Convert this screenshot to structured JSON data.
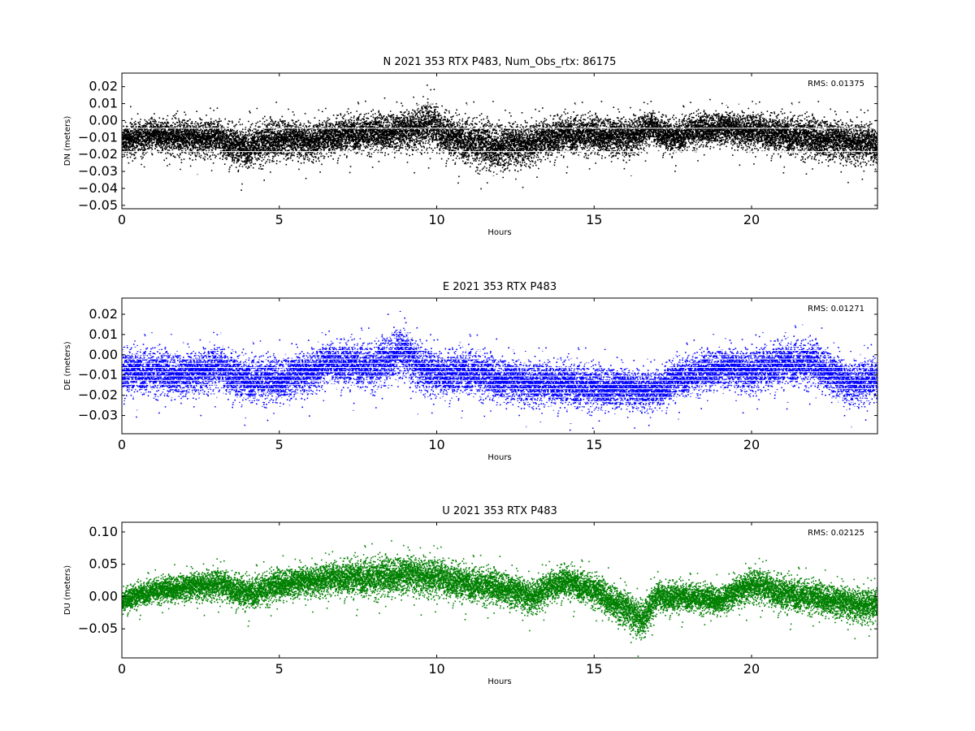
{
  "chart_data": [
    {
      "type": "scatter",
      "title": "N 2021 353 RTX  P483, Num_Obs_rtx: 86175",
      "xlabel": "Hours",
      "ylabel": "DN (meters)",
      "xlim": [
        0,
        24
      ],
      "ylim": [
        -0.052,
        0.028
      ],
      "xticks": [
        0,
        5,
        10,
        15,
        20
      ],
      "xtick_labels": [
        "0",
        "5",
        "10",
        "15",
        "20"
      ],
      "yticks": [
        0.02,
        0.01,
        0.0,
        -0.01,
        -0.02,
        -0.03,
        -0.04,
        -0.05
      ],
      "ytick_labels": [
        "0.02",
        "0.01",
        "0.00",
        "−0.01",
        "−0.02",
        "−0.03",
        "−0.04",
        "−0.05"
      ],
      "annotation": "RMS:  0.01375",
      "annotation_color": "#0000ff",
      "color": "#000000",
      "grid": false,
      "series": [
        {
          "x": [
            0,
            1,
            2,
            3,
            3.8,
            5,
            6,
            7,
            8,
            9,
            9.7,
            10.5,
            11.5,
            12,
            13,
            14,
            15,
            16,
            16.8,
            17.5,
            18,
            19,
            20,
            21,
            22,
            23,
            24
          ],
          "y": [
            -0.012,
            -0.008,
            -0.01,
            -0.01,
            -0.016,
            -0.01,
            -0.012,
            -0.008,
            -0.007,
            -0.006,
            -0.002,
            -0.01,
            -0.014,
            -0.015,
            -0.013,
            -0.008,
            -0.008,
            -0.01,
            -0.004,
            -0.01,
            -0.006,
            -0.004,
            -0.006,
            -0.008,
            -0.01,
            -0.012,
            -0.014
          ],
          "spread": [
            0.008,
            0.008,
            0.009,
            0.009,
            0.01,
            0.01,
            0.009,
            0.009,
            0.009,
            0.01,
            0.012,
            0.01,
            0.012,
            0.012,
            0.01,
            0.009,
            0.009,
            0.01,
            0.008,
            0.008,
            0.008,
            0.008,
            0.009,
            0.009,
            0.01,
            0.01,
            0.01
          ]
        }
      ]
    },
    {
      "type": "scatter",
      "title": "E 2021 353 RTX  P483",
      "xlabel": "Hours",
      "ylabel": "DE (meters)",
      "xlim": [
        0,
        24
      ],
      "ylim": [
        -0.039,
        0.028
      ],
      "xticks": [
        0,
        5,
        10,
        15,
        20
      ],
      "xtick_labels": [
        "0",
        "5",
        "10",
        "15",
        "20"
      ],
      "yticks": [
        0.02,
        0.01,
        0.0,
        -0.01,
        -0.02,
        -0.03
      ],
      "ytick_labels": [
        "0.02",
        "0.01",
        "0.00",
        "−0.01",
        "−0.02",
        "−0.03"
      ],
      "annotation": "RMS:  0.01271",
      "annotation_color": "#0000ff",
      "color": "#0000ff",
      "grid": false,
      "series": [
        {
          "x": [
            0,
            1,
            2,
            3,
            3.8,
            5,
            6,
            6.5,
            7,
            8,
            8.8,
            9.5,
            10,
            11,
            12,
            13,
            14,
            15,
            16,
            16.9,
            17.5,
            18,
            19,
            20,
            21,
            22,
            23,
            24
          ],
          "y": [
            -0.008,
            -0.008,
            -0.01,
            -0.006,
            -0.012,
            -0.012,
            -0.008,
            -0.004,
            -0.004,
            -0.006,
            0.002,
            -0.006,
            -0.01,
            -0.008,
            -0.012,
            -0.014,
            -0.014,
            -0.016,
            -0.016,
            -0.018,
            -0.012,
            -0.01,
            -0.006,
            -0.008,
            -0.004,
            -0.004,
            -0.014,
            -0.012
          ],
          "spread": [
            0.009,
            0.009,
            0.009,
            0.009,
            0.009,
            0.009,
            0.009,
            0.008,
            0.009,
            0.009,
            0.011,
            0.01,
            0.009,
            0.009,
            0.009,
            0.009,
            0.009,
            0.009,
            0.008,
            0.008,
            0.008,
            0.008,
            0.008,
            0.009,
            0.009,
            0.009,
            0.009,
            0.009
          ]
        }
      ]
    },
    {
      "type": "scatter",
      "title": "U 2021 353 RTX  P483",
      "xlabel": "Hours",
      "ylabel": "DU (meters)",
      "xlim": [
        0,
        24
      ],
      "ylim": [
        -0.095,
        0.115
      ],
      "xticks": [
        0,
        5,
        10,
        15,
        20
      ],
      "xtick_labels": [
        "0",
        "5",
        "10",
        "15",
        "20"
      ],
      "yticks": [
        0.1,
        0.05,
        0.0,
        -0.05
      ],
      "ytick_labels": [
        "0.10",
        "0.05",
        "0.00",
        "−0.05"
      ],
      "annotation": "RMS:  0.02125",
      "annotation_color": "#0000ff",
      "color": "#008000",
      "grid": false,
      "series": [
        {
          "x": [
            0,
            1,
            2,
            3,
            4,
            5,
            6,
            7,
            8,
            9,
            10,
            11,
            12,
            13,
            14,
            15,
            16,
            16.5,
            17,
            18,
            19,
            20,
            21,
            22,
            23,
            24
          ],
          "y": [
            -0.005,
            0.01,
            0.015,
            0.02,
            0.005,
            0.02,
            0.025,
            0.03,
            0.03,
            0.035,
            0.03,
            0.02,
            0.015,
            0.0,
            0.025,
            0.01,
            -0.02,
            -0.035,
            0.0,
            0.0,
            -0.005,
            0.02,
            0.005,
            0.0,
            -0.01,
            -0.015
          ],
          "spread": [
            0.015,
            0.015,
            0.018,
            0.02,
            0.02,
            0.02,
            0.02,
            0.022,
            0.025,
            0.025,
            0.025,
            0.022,
            0.022,
            0.022,
            0.02,
            0.02,
            0.025,
            0.025,
            0.02,
            0.018,
            0.018,
            0.022,
            0.022,
            0.02,
            0.022,
            0.022
          ]
        }
      ]
    }
  ]
}
